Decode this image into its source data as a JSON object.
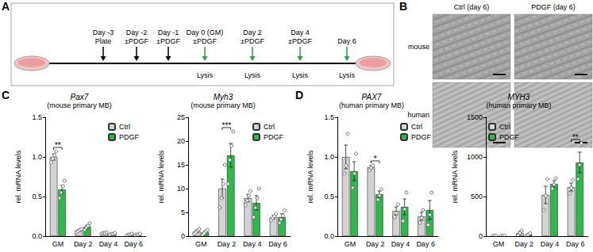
{
  "panel_labels": [
    "A",
    "B",
    "C",
    "D"
  ],
  "timeline": {
    "events": [
      {
        "label": "Day -3",
        "sub": "Plate",
        "color": "#000000"
      },
      {
        "label": "Day -2",
        "sub": "±PDGF",
        "color": "#000000"
      },
      {
        "label": "Day -1",
        "sub": "±PDGF",
        "color": "#000000"
      },
      {
        "label": "Day 0 (GM)",
        "sub": "±PDGF",
        "color": "#2aa34a",
        "below": "Lysis"
      },
      {
        "label": "Day 2",
        "sub": "±PDGF",
        "color": "#2aa34a",
        "below": "Lysis"
      },
      {
        "label": "Day 4",
        "sub": "±PDGF",
        "color": "#2aa34a",
        "below": "Lysis"
      },
      {
        "label": "Day 6",
        "color": "#2aa34a",
        "below": "Lysis"
      }
    ]
  },
  "images": {
    "columns": [
      "Ctrl (day 6)",
      "PDGF (day 6)"
    ],
    "rows": [
      "mouse",
      "human"
    ]
  },
  "chart_data": [
    {
      "type": "bar",
      "title": "Pax7",
      "subtitle": "(mouse primary MB)",
      "y_label": "rel. mRNA levels",
      "categories": [
        "GM",
        "Day 2",
        "Day 4",
        "Day 6"
      ],
      "series": [
        {
          "name": "Ctrl",
          "color": "#d3d3d3",
          "values": [
            1.0,
            0.07,
            0.04,
            0.02
          ],
          "errors": [
            0.04,
            0.01,
            0.01,
            0.005
          ],
          "points": [
            [
              0.93,
              0.98,
              1.02,
              1.07
            ],
            [
              0.05,
              0.06,
              0.08,
              0.09
            ],
            [
              0.03,
              0.04,
              0.04,
              0.05
            ],
            [
              0.01,
              0.02,
              0.02,
              0.03
            ]
          ]
        },
        {
          "name": "PDGF",
          "color": "#2db84b",
          "values": [
            0.59,
            0.12,
            0.03,
            0.02
          ],
          "errors": [
            0.05,
            0.02,
            0.01,
            0.005
          ],
          "points": [
            [
              0.48,
              0.55,
              0.63,
              0.7
            ],
            [
              0.08,
              0.11,
              0.13,
              0.16
            ],
            [
              0.02,
              0.03,
              0.03,
              0.04
            ],
            [
              0.01,
              0.02,
              0.02,
              0.03
            ]
          ]
        }
      ],
      "ylim": [
        0,
        1.5
      ],
      "yticks": [
        {
          "value": 0,
          "label": "0.0"
        },
        {
          "value": 0.5,
          "label": "0.5"
        },
        {
          "value": 1,
          "label": "1.0"
        },
        {
          "value": 1.5,
          "label": "1.5"
        }
      ],
      "grid": false,
      "legend": "top-right",
      "annotations": [
        {
          "category": "GM",
          "text": "**"
        }
      ]
    },
    {
      "type": "bar",
      "title": "Myh3",
      "subtitle": "(mouse primary MB)",
      "y_label": "rel. mRNA levels",
      "categories": [
        "GM",
        "Day 2",
        "Day 4",
        "Day 6"
      ],
      "series": [
        {
          "name": "Ctrl",
          "color": "#d3d3d3",
          "values": [
            1.0,
            10,
            8,
            4
          ],
          "errors": [
            0.3,
            2,
            0.8,
            0.4
          ],
          "points": [
            [
              0.5,
              0.8,
              1.2,
              1.5
            ],
            [
              6,
              8,
              11,
              15
            ],
            [
              6.5,
              7.5,
              8.5,
              9.5
            ],
            [
              3.3,
              3.8,
              4.2,
              4.7
            ]
          ]
        },
        {
          "name": "PDGF",
          "color": "#2db84b",
          "values": [
            0.8,
            17,
            7,
            4
          ],
          "errors": [
            0.3,
            2.5,
            1.5,
            0.7
          ],
          "points": [
            [
              0.3,
              0.6,
              1.0,
              1.3
            ],
            [
              11,
              16,
              19,
              22
            ],
            [
              4,
              6,
              8,
              10
            ],
            [
              2.8,
              3.5,
              4.3,
              5.4
            ]
          ]
        }
      ],
      "ylim": [
        0,
        25
      ],
      "yticks": [
        0,
        5,
        10,
        15,
        20,
        25
      ],
      "grid": false,
      "legend": "top-right",
      "annotations": [
        {
          "category": "Day 2",
          "text": "***"
        }
      ]
    },
    {
      "type": "bar",
      "title": "PAX7",
      "subtitle": "(human primary MB)",
      "y_label": "rel. mRNA levels",
      "categories": [
        "GM",
        "Day 2",
        "Day 4",
        "Day 6"
      ],
      "series": [
        {
          "name": "Ctrl",
          "color": "#d3d3d3",
          "values": [
            1.0,
            0.87,
            0.32,
            0.25
          ],
          "errors": [
            0.15,
            0.02,
            0.05,
            0.05
          ],
          "points": [
            [
              0.8,
              0.9,
              1.3
            ],
            [
              0.84,
              0.87,
              0.9
            ],
            [
              0.25,
              0.3,
              0.41
            ],
            [
              0.18,
              0.24,
              0.33
            ]
          ]
        },
        {
          "name": "PDGF",
          "color": "#2db84b",
          "values": [
            0.82,
            0.53,
            0.37,
            0.33
          ],
          "errors": [
            0.12,
            0.04,
            0.1,
            0.12
          ],
          "points": [
            [
              0.62,
              0.8,
              1.05
            ],
            [
              0.47,
              0.52,
              0.6
            ],
            [
              0.2,
              0.35,
              0.56
            ],
            [
              0.15,
              0.28,
              0.56
            ]
          ]
        }
      ],
      "ylim": [
        0,
        1.5
      ],
      "yticks": [
        {
          "value": 0,
          "label": "0.0"
        },
        {
          "value": 0.5,
          "label": "0.5"
        },
        {
          "value": 1,
          "label": "1.0"
        },
        {
          "value": 1.5,
          "label": "1.5"
        }
      ],
      "grid": false,
      "legend": "top-right",
      "annotations": [
        {
          "category": "Day 2",
          "text": "*"
        }
      ]
    },
    {
      "type": "bar",
      "title": "MYH3",
      "subtitle": "(human primary MB)",
      "y_label": "rel. mRNA levels",
      "categories": [
        "GM",
        "Day 2",
        "Day 4",
        "Day 6"
      ],
      "series": [
        {
          "name": "Ctrl",
          "color": "#d3d3d3",
          "values": [
            5,
            40,
            520,
            620
          ],
          "errors": [
            2,
            20,
            110,
            50
          ],
          "points": [
            [
              2,
              5,
              8
            ],
            [
              10,
              40,
              70
            ],
            [
              330,
              510,
              720
            ],
            [
              540,
              610,
              710
            ]
          ]
        },
        {
          "name": "PDGF",
          "color": "#2db84b",
          "values": [
            5,
            20,
            660,
            930
          ],
          "errors": [
            2,
            10,
            40,
            130
          ],
          "points": [
            [
              2,
              5,
              8
            ],
            [
              5,
              20,
              35
            ],
            [
              600,
              650,
              730
            ],
            [
              720,
              900,
              1170
            ]
          ]
        }
      ],
      "ylim": [
        0,
        1500
      ],
      "yticks": [
        0,
        500,
        1000,
        1500
      ],
      "grid": false,
      "legend": "top-left",
      "annotations": [
        {
          "category": "Day 6",
          "text": "**"
        }
      ]
    }
  ]
}
